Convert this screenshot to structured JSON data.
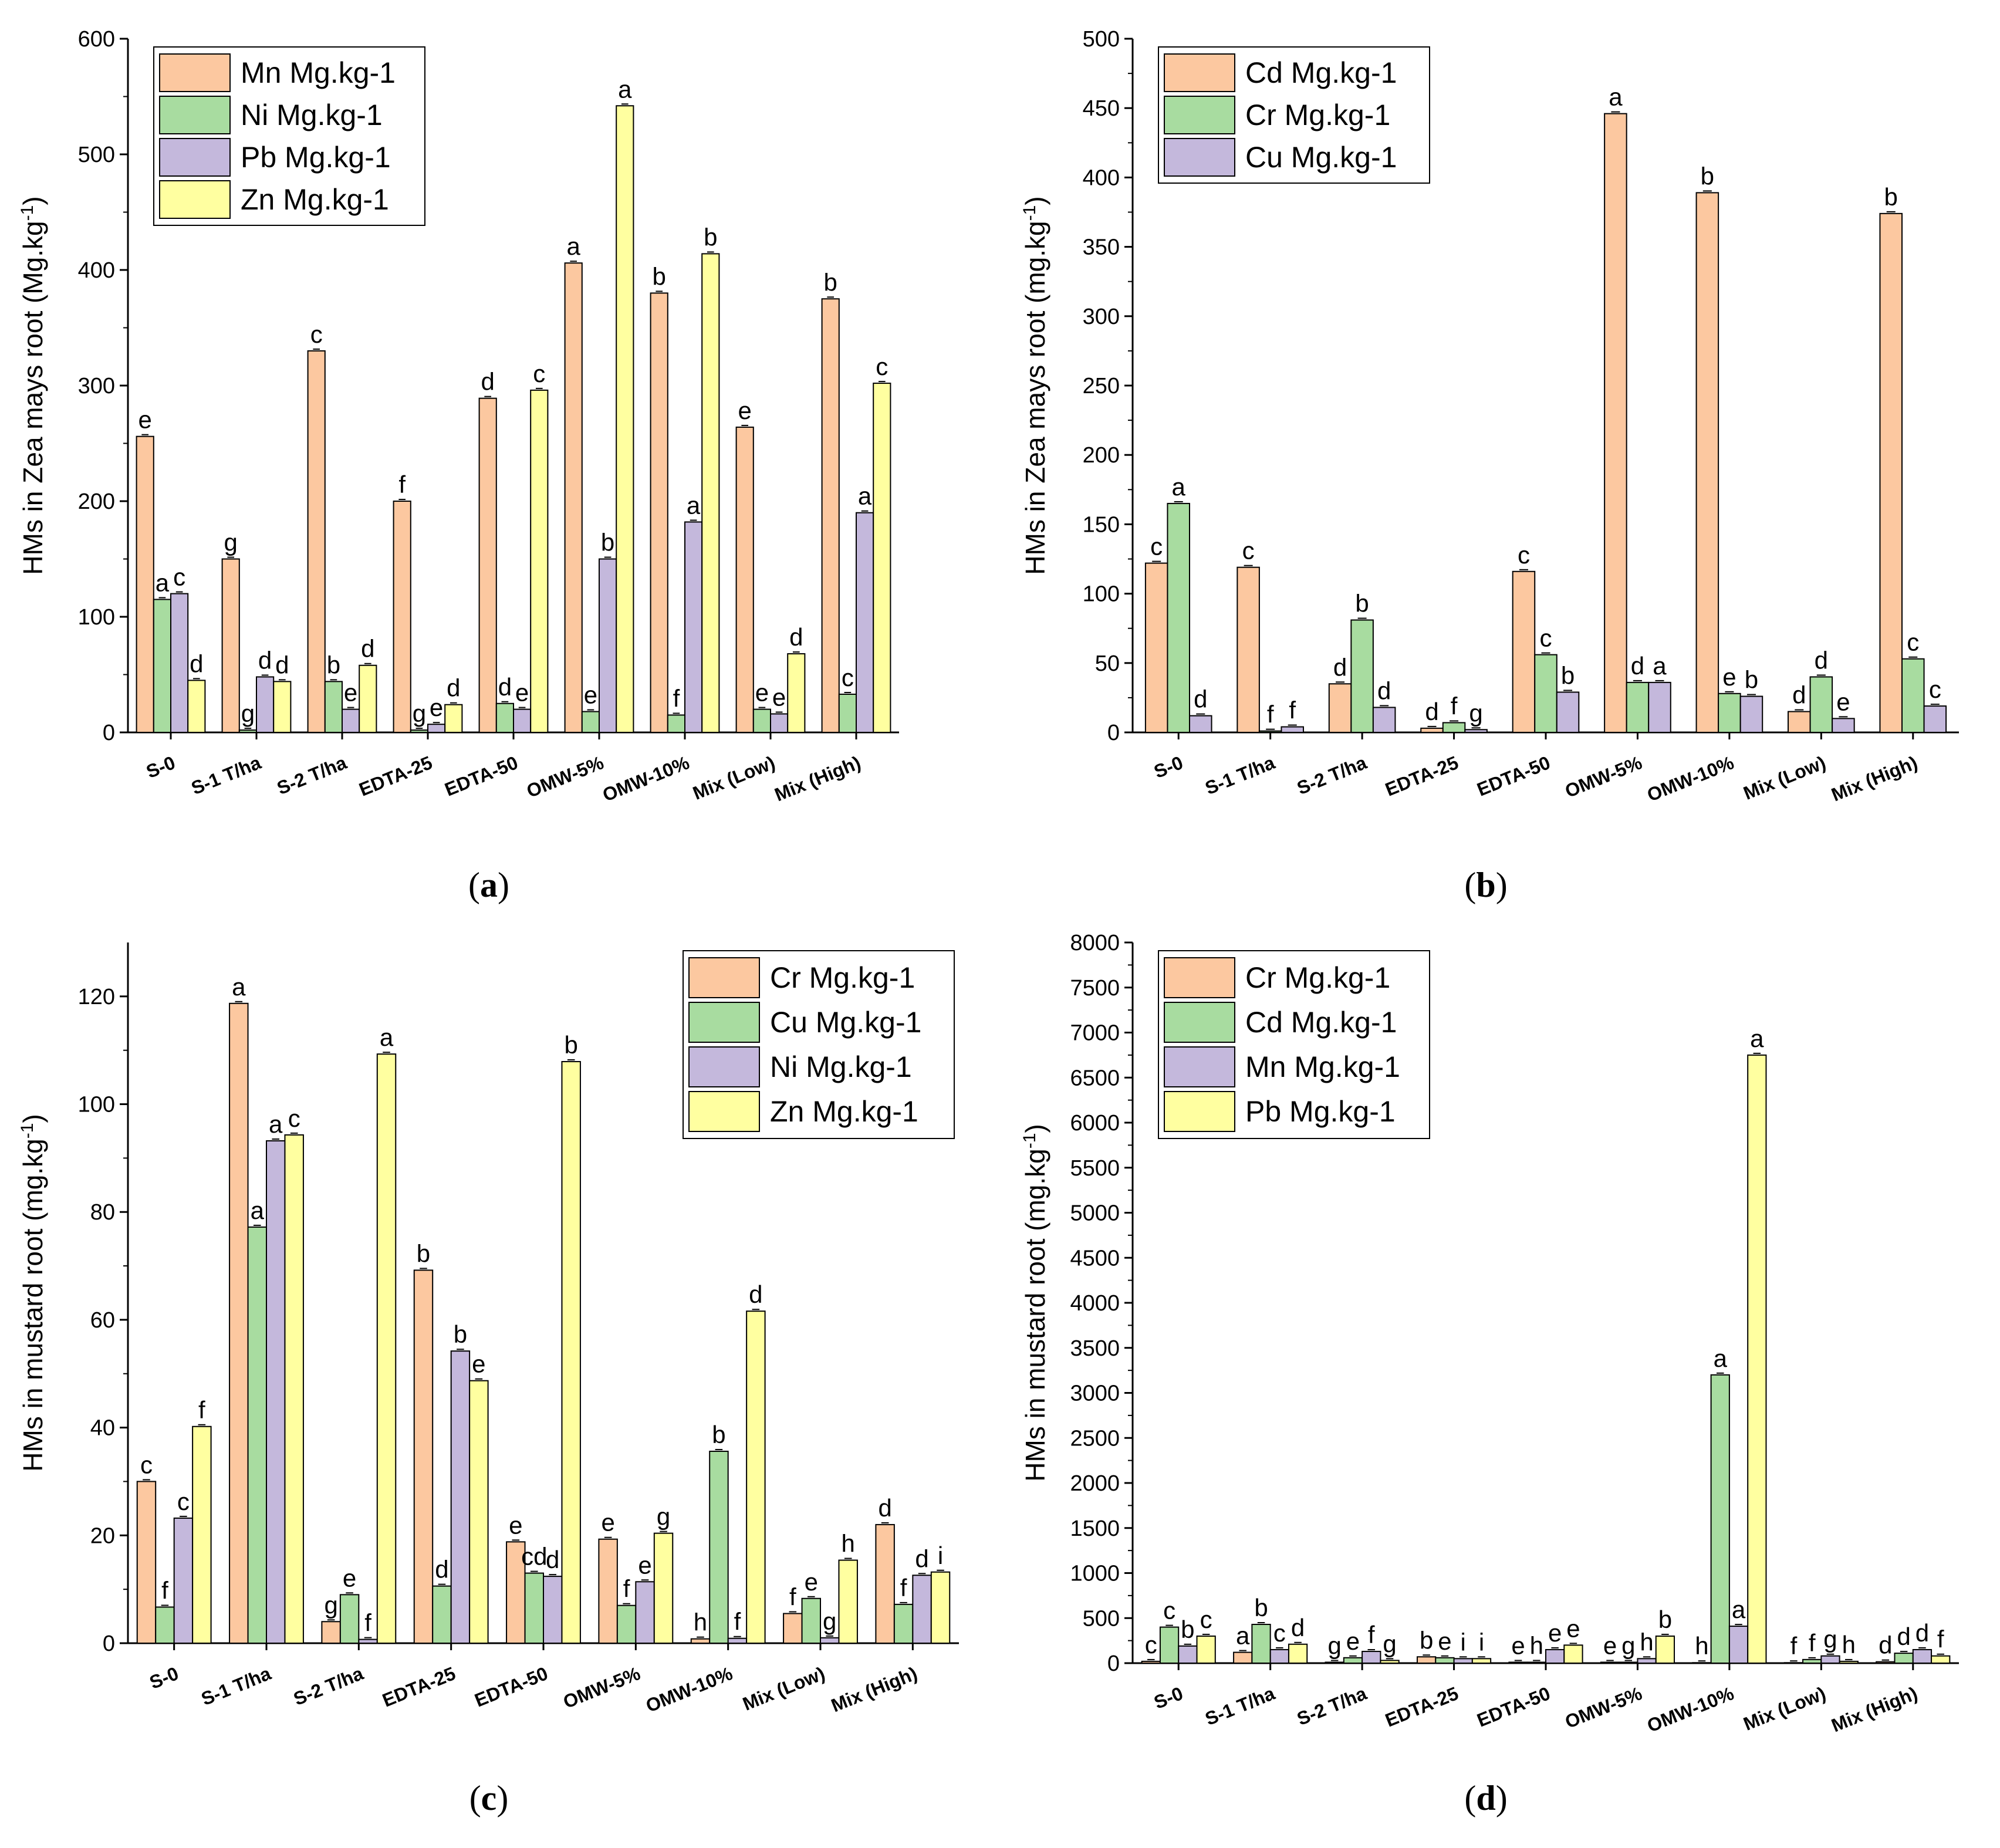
{
  "chart_data": [
    {
      "id": "a",
      "type": "bar",
      "panel_label": "(a)",
      "panel_label_letter": "a",
      "ylabel_main": "HMs in Zea mays root (Mg.kg",
      "ylabel_sup": "-1",
      "ylabel_end": ")",
      "ylim": [
        0,
        600
      ],
      "yticks": [
        0,
        100,
        200,
        300,
        400,
        500,
        600
      ],
      "legend_position": "top-left",
      "categories": [
        "S-0",
        "S-1 T/ha",
        "S-2 T/ha",
        "EDTA-25",
        "EDTA-50",
        "OMW-5%",
        "OMW-10%",
        "Mix (Low)",
        "Mix (High)"
      ],
      "series": [
        {
          "name": "Mn Mg.kg-1",
          "color": "#FCC8A0",
          "values": [
            256,
            150,
            330,
            200,
            289,
            406,
            380,
            264,
            375
          ],
          "letters": [
            "e",
            "g",
            "c",
            "f",
            "d",
            "a",
            "b",
            "e",
            "b"
          ]
        },
        {
          "name": "Ni Mg.kg-1",
          "color": "#A8DCA0",
          "values": [
            115,
            2,
            44,
            2,
            25,
            18,
            15,
            20,
            33
          ],
          "letters": [
            "a",
            "g",
            "b",
            "g",
            "d",
            "e",
            "f",
            "e",
            "c"
          ]
        },
        {
          "name": "Pb Mg.kg-1",
          "color": "#C4B8DC",
          "values": [
            120,
            48,
            20,
            7,
            20,
            150,
            182,
            16,
            190
          ],
          "letters": [
            "c",
            "d",
            "e",
            "e",
            "e",
            "b",
            "a",
            "e",
            "a"
          ]
        },
        {
          "name": "Zn Mg.kg-1",
          "color": "#FFFFA0",
          "values": [
            45,
            44,
            58,
            24,
            296,
            542,
            414,
            68,
            302
          ],
          "letters": [
            "d",
            "d",
            "d",
            "d",
            "c",
            "a",
            "b",
            "d",
            "c"
          ]
        }
      ]
    },
    {
      "id": "b",
      "type": "bar",
      "panel_label": "(b)",
      "panel_label_letter": "b",
      "ylabel_main": "HMs in Zea mays root (mg.kg",
      "ylabel_sup": "-1",
      "ylabel_end": ")",
      "ylim": [
        0,
        500
      ],
      "yticks": [
        0,
        50,
        100,
        150,
        200,
        250,
        300,
        350,
        400,
        450,
        500
      ],
      "legend_position": "top-left",
      "categories": [
        "S-0",
        "S-1 T/ha",
        "S-2 T/ha",
        "EDTA-25",
        "EDTA-50",
        "OMW-5%",
        "OMW-10%",
        "Mix (Low)",
        "Mix (High)"
      ],
      "series": [
        {
          "name": "Cd Mg.kg-1",
          "color": "#FCC8A0",
          "values": [
            122,
            119,
            35,
            3,
            116,
            446,
            389,
            15,
            374
          ],
          "letters": [
            "c",
            "c",
            "d",
            "d",
            "c",
            "a",
            "b",
            "d",
            "b"
          ]
        },
        {
          "name": "Cr Mg.kg-1",
          "color": "#A8DCA0",
          "values": [
            165,
            1,
            81,
            7,
            56,
            36,
            28,
            40,
            53
          ],
          "letters": [
            "a",
            "f",
            "b",
            "f",
            "c",
            "d",
            "e",
            "d",
            "c"
          ]
        },
        {
          "name": "Cu Mg.kg-1",
          "color": "#C4B8DC",
          "values": [
            12,
            4,
            18,
            2,
            29,
            36,
            26,
            10,
            19
          ],
          "letters": [
            "d",
            "f",
            "d",
            "g",
            "b",
            "a",
            "b",
            "e",
            "c"
          ]
        }
      ]
    },
    {
      "id": "c",
      "type": "bar",
      "panel_label": "(c)",
      "panel_label_letter": "c",
      "ylabel_main": "HMs in mustard root (mg.kg",
      "ylabel_sup": "-1",
      "ylabel_end": ")",
      "ylim": [
        0,
        130
      ],
      "yticks": [
        0,
        20,
        40,
        60,
        80,
        100,
        120
      ],
      "legend_position": "top-right",
      "categories": [
        "S-0",
        "S-1 T/ha",
        "S-2 T/ha",
        "EDTA-25",
        "EDTA-50",
        "OMW-5%",
        "OMW-10%",
        "Mix (Low)",
        "Mix (High)"
      ],
      "series": [
        {
          "name": "Cr Mg.kg-1",
          "color": "#FCC8A0",
          "values": [
            30,
            118.7,
            4,
            69.2,
            18.8,
            19.3,
            0.8,
            5.5,
            22
          ],
          "letters": [
            "c",
            "a",
            "g",
            "b",
            "e",
            "e",
            "h",
            "f",
            "d"
          ]
        },
        {
          "name": "Cu Mg.kg-1",
          "color": "#A8DCA0",
          "values": [
            6.7,
            77.2,
            9,
            10.6,
            13,
            7,
            35.6,
            8.3,
            7.2
          ],
          "letters": [
            "f",
            "a",
            "e",
            "d",
            "cd",
            "f",
            "b",
            "e",
            "f"
          ]
        },
        {
          "name": "Ni Mg.kg-1",
          "color": "#C4B8DC",
          "values": [
            23.2,
            93.2,
            0.7,
            54.2,
            12.4,
            11.4,
            0.9,
            1,
            12.6
          ],
          "letters": [
            "c",
            "a",
            "f",
            "b",
            "d",
            "e",
            "f",
            "g",
            "d"
          ]
        },
        {
          "name": "Zn Mg.kg-1",
          "color": "#FFFFA0",
          "values": [
            40.2,
            94.3,
            109.3,
            48.7,
            107.9,
            20.4,
            61.6,
            15.4,
            13.2
          ],
          "letters": [
            "f",
            "c",
            "a",
            "e",
            "b",
            "g",
            "d",
            "h",
            "i"
          ]
        }
      ]
    },
    {
      "id": "d",
      "type": "bar",
      "panel_label": "(d)",
      "panel_label_letter": "d",
      "ylabel_main": "HMs in mustard root (mg.kg",
      "ylabel_sup": "-1",
      "ylabel_end": ")",
      "ylim": [
        0,
        8000
      ],
      "yticks": [
        0,
        500,
        1000,
        1500,
        2000,
        2500,
        3000,
        3500,
        4000,
        4500,
        5000,
        5500,
        6000,
        6500,
        7000,
        7500,
        8000
      ],
      "legend_position": "top-left",
      "categories": [
        "S-0",
        "S-1 T/ha",
        "S-2 T/ha",
        "EDTA-25",
        "EDTA-50",
        "OMW-5%",
        "OMW-10%",
        "Mix (Low)",
        "Mix (High)"
      ],
      "series": [
        {
          "name": "Cr Mg.kg-1",
          "color": "#FCC8A0",
          "values": [
            20,
            120,
            10,
            70,
            10,
            10,
            5,
            5,
            15
          ],
          "letters": [
            "c",
            "a",
            "g",
            "b",
            "e",
            "e",
            "h",
            "f",
            "d"
          ]
        },
        {
          "name": "Cd Mg.kg-1",
          "color": "#A8DCA0",
          "values": [
            400,
            430,
            60,
            60,
            10,
            10,
            3200,
            40,
            110
          ],
          "letters": [
            "c",
            "b",
            "e",
            "e",
            "h",
            "g",
            "a",
            "f",
            "d"
          ]
        },
        {
          "name": "Mn Mg.kg-1",
          "color": "#C4B8DC",
          "values": [
            190,
            150,
            130,
            50,
            150,
            50,
            410,
            80,
            150
          ],
          "letters": [
            "b",
            "c",
            "f",
            "i",
            "e",
            "h",
            "a",
            "g",
            "d"
          ]
        },
        {
          "name": "Pb Mg.kg-1",
          "color": "#FFFFA0",
          "values": [
            300,
            210,
            30,
            50,
            200,
            300,
            6750,
            20,
            80
          ],
          "letters": [
            "c",
            "d",
            "g",
            "i",
            "e",
            "b",
            "a",
            "h",
            "f"
          ]
        }
      ]
    }
  ]
}
